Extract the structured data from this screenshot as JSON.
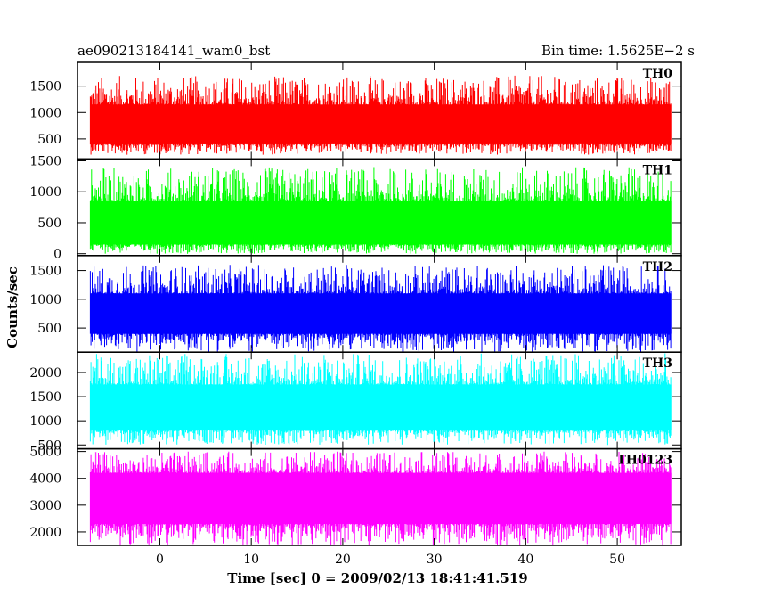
{
  "header": {
    "left": "ae090213184141_wam0_bst",
    "right": "Bin time: 1.5625E−2 s"
  },
  "chart_data": {
    "type": "line",
    "xlabel": "Time [sec] 0 = 2009/02/13 18:41:41.519",
    "ylabel": "Counts/sec",
    "xlim": [
      -9,
      57
    ],
    "x_range": [
      -7.6,
      55.9
    ],
    "x_ticks": [
      0,
      10,
      20,
      30,
      40,
      50
    ],
    "x_tick_labels": [
      "0",
      "10",
      "20",
      "30",
      "40",
      "50"
    ],
    "panels": [
      {
        "name": "TH0",
        "color": "#ff0000",
        "ylim": [
          120,
          1950
        ],
        "y_ticks": [
          500,
          1000,
          1500
        ],
        "y_tick_labels": [
          "500",
          "1000",
          "1500"
        ],
        "data_range": [
          200,
          1700
        ],
        "typical_range": [
          400,
          1150
        ],
        "mean": 780
      },
      {
        "name": "TH1",
        "color": "#00ff00",
        "ylim": [
          -30,
          1530
        ],
        "y_ticks": [
          0,
          500,
          1000,
          1500
        ],
        "y_tick_labels": [
          "0",
          "500",
          "1000",
          "1500"
        ],
        "data_range": [
          0,
          1400
        ],
        "typical_range": [
          150,
          850
        ],
        "mean": 480
      },
      {
        "name": "TH2",
        "color": "#0000ff",
        "ylim": [
          80,
          1760
        ],
        "y_ticks": [
          500,
          1000,
          1500
        ],
        "y_tick_labels": [
          "500",
          "1000",
          "1500"
        ],
        "data_range": [
          80,
          1600
        ],
        "typical_range": [
          400,
          1100
        ],
        "mean": 750
      },
      {
        "name": "TH3",
        "color": "#00ffff",
        "ylim": [
          420,
          2420
        ],
        "y_ticks": [
          500,
          1000,
          1500,
          2000
        ],
        "y_tick_labels": [
          "500",
          "1000",
          "1500",
          "2000"
        ],
        "data_range": [
          500,
          2400
        ],
        "typical_range": [
          800,
          1750
        ],
        "mean": 1250
      },
      {
        "name": "TH0123",
        "color": "#ff00ff",
        "ylim": [
          1500,
          5100
        ],
        "y_ticks": [
          2000,
          3000,
          4000,
          5000
        ],
        "y_tick_labels": [
          "2000",
          "3000",
          "4000",
          "5000"
        ],
        "data_range": [
          1500,
          5000
        ],
        "typical_range": [
          2300,
          4200
        ],
        "mean": 3150
      }
    ],
    "grid": false,
    "legend": "none"
  }
}
